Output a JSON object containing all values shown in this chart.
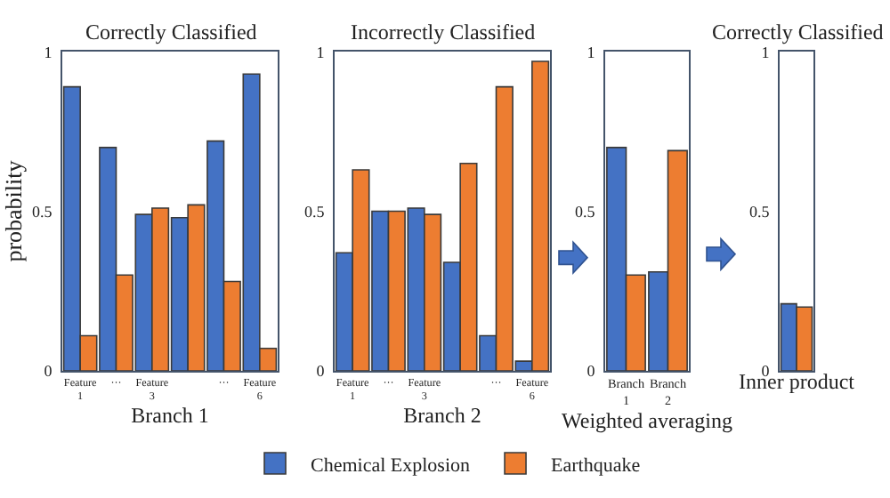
{
  "chart_data": [
    {
      "type": "bar",
      "title": "Correctly Classified",
      "xlabel": "Branch 1",
      "ylabel": "probability",
      "categories": [
        "Feature 1",
        "···",
        "Feature 3",
        null,
        "···",
        "Feature 6"
      ],
      "ylim": [
        0,
        1
      ],
      "yticks": [
        0,
        0.5,
        1
      ],
      "legend": "bottom",
      "series": [
        {
          "name": "Chemical Explosion",
          "color": "#4472c4",
          "values": [
            0.89,
            0.7,
            0.49,
            0.48,
            0.72,
            0.93
          ]
        },
        {
          "name": "Earthquake",
          "color": "#ed7d31",
          "values": [
            0.11,
            0.3,
            0.51,
            0.52,
            0.28,
            0.07
          ]
        }
      ]
    },
    {
      "type": "bar",
      "title": "Incorrectly Classified",
      "xlabel": "Branch 2",
      "categories": [
        "Feature 1",
        "···",
        "Feature 3",
        null,
        "···",
        "Feature 6"
      ],
      "ylim": [
        0,
        1
      ],
      "yticks": [
        0,
        0.5,
        1
      ],
      "series": [
        {
          "color": "#4472c4",
          "values": [
            0.37,
            0.5,
            0.51,
            0.34,
            0.11,
            0.03
          ]
        },
        {
          "color": "#ed7d31",
          "values": [
            0.63,
            0.5,
            0.49,
            0.65,
            0.89,
            0.97
          ]
        }
      ]
    },
    {
      "type": "bar",
      "xlabel": "Weighted averaging",
      "categories": [
        "Branch 1",
        "Branch 2"
      ],
      "ylim": [
        0,
        1
      ],
      "yticks": [
        0,
        0.5,
        1
      ],
      "series": [
        {
          "color": "#4472c4",
          "values": [
            0.7,
            0.31
          ]
        },
        {
          "color": "#ed7d31",
          "values": [
            0.3,
            0.69
          ]
        }
      ]
    },
    {
      "type": "bar",
      "title": "Correctly Classified",
      "xlabel": "Inner product",
      "categories": [
        null
      ],
      "ylim": [
        0,
        1
      ],
      "yticks": [
        0,
        0.5,
        1
      ],
      "series": [
        {
          "color": "#4472c4",
          "values": [
            0.21
          ]
        },
        {
          "color": "#ed7d31",
          "values": [
            0.2
          ]
        }
      ]
    }
  ]
}
